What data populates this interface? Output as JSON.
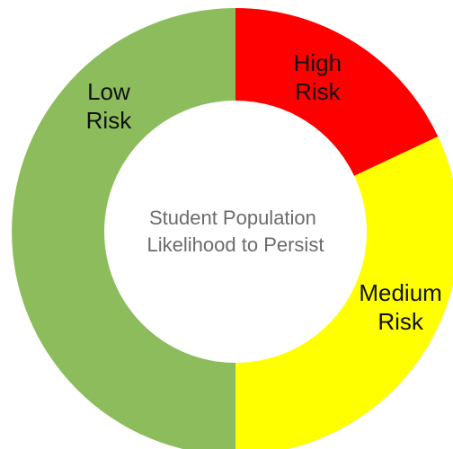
{
  "chart_data": {
    "type": "pie",
    "variant": "donut",
    "center_text": {
      "line1": "Student Population",
      "line2": "Likelihood to Persist"
    },
    "slices": [
      {
        "name": "High Risk",
        "label_lines": [
          "High",
          "Risk"
        ],
        "percent": 18,
        "color": "#ff0000"
      },
      {
        "name": "Medium Risk",
        "label_lines": [
          "Medium",
          "Risk"
        ],
        "percent": 32,
        "color": "#ffff00"
      },
      {
        "name": "Low Risk",
        "label_lines": [
          "Low",
          "Risk"
        ],
        "percent": 50,
        "color": "#8cbc5c"
      }
    ]
  }
}
